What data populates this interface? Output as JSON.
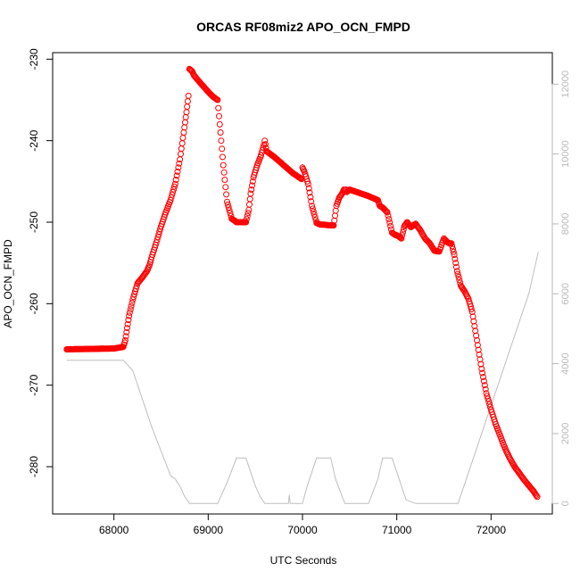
{
  "chart_data": {
    "type": "scatter",
    "title": "ORCAS RF08miz2 APO_OCN_FMPD",
    "xlabel": "UTC Seconds",
    "ylabel": "APO_OCN_FMPD",
    "xlim": [
      67350,
      72650
    ],
    "ylim": [
      -285.8,
      -229.2
    ],
    "y2lim": [
      -300,
      12900
    ],
    "x_ticks": [
      68000,
      69000,
      70000,
      71000,
      72000
    ],
    "y_ticks": [
      -230,
      -240,
      -250,
      -260,
      -270,
      -280
    ],
    "y2_ticks": [
      0,
      2000,
      4000,
      6000,
      8000,
      10000,
      12000
    ],
    "colors": {
      "points": "#ff0000",
      "altitude_line": "#bebebe",
      "axes": "#000000",
      "right_axis": "#b9b9b9"
    },
    "series": [
      {
        "marker": "open-circle",
        "x": [
          67500,
          68000,
          68100,
          68120,
          68140,
          68160,
          68200,
          68250,
          68300,
          68350,
          68380,
          68400,
          68450,
          68500,
          68550,
          68600,
          68650,
          68700,
          68740,
          68770,
          68790,
          68800,
          68830,
          68850,
          68900,
          69000,
          69050,
          69100,
          69130,
          69160,
          69200,
          69250,
          69280,
          69300,
          69350,
          69400,
          69430,
          69450,
          69480,
          69520,
          69560,
          69590,
          69600,
          69620,
          69700,
          69800,
          69900,
          69950,
          69990,
          70000,
          70020,
          70060,
          70100,
          70150,
          70190,
          70220,
          70300,
          70330,
          70360,
          70390,
          70420,
          70440,
          70460,
          70470,
          70500,
          70550,
          70600,
          70700,
          70800,
          70820,
          70850,
          70900,
          70950,
          70990,
          71000,
          71050,
          71080,
          71110,
          71150,
          71200,
          71250,
          71300,
          71350,
          71400,
          71450,
          71500,
          71540,
          71560,
          71580,
          71610,
          71640,
          71680,
          71720,
          71760,
          71800,
          71850,
          71900,
          71950,
          72000,
          72050,
          72100,
          72150,
          72200,
          72250,
          72300,
          72350,
          72400,
          72450,
          72490
        ],
        "y": [
          -265.6,
          -265.5,
          -265.3,
          -264.5,
          -263.0,
          -261.5,
          -259.5,
          -257.5,
          -256.8,
          -256.0,
          -255.2,
          -254.3,
          -252.5,
          -250.5,
          -248.8,
          -247.3,
          -245.3,
          -242.3,
          -239.0,
          -236.5,
          -234.5,
          -231.2,
          -231.5,
          -232.0,
          -232.7,
          -234.0,
          -234.6,
          -235.0,
          -239.0,
          -243.0,
          -247.5,
          -249.6,
          -249.8,
          -250.0,
          -250.0,
          -250.0,
          -248.5,
          -246.5,
          -244.5,
          -243.0,
          -241.8,
          -240.5,
          -240.0,
          -241.3,
          -242.0,
          -243.0,
          -244.0,
          -244.4,
          -244.7,
          -243.3,
          -243.8,
          -245.3,
          -248.0,
          -250.1,
          -250.3,
          -250.3,
          -250.4,
          -250.4,
          -248.0,
          -247.0,
          -246.5,
          -246.0,
          -246.0,
          -246.3,
          -246.0,
          -246.2,
          -246.4,
          -246.8,
          -247.3,
          -248.0,
          -248.2,
          -248.8,
          -251.3,
          -251.6,
          -251.6,
          -252.0,
          -250.5,
          -250.0,
          -250.6,
          -250.2,
          -251.0,
          -252.0,
          -252.6,
          -253.5,
          -253.6,
          -252.0,
          -252.5,
          -252.6,
          -252.6,
          -254.0,
          -256.0,
          -257.8,
          -258.5,
          -259.4,
          -261.0,
          -264.5,
          -268.0,
          -271.0,
          -273.0,
          -274.8,
          -276.3,
          -277.8,
          -279.0,
          -280.0,
          -280.8,
          -281.6,
          -282.3,
          -283.0,
          -283.7
        ]
      },
      {
        "axis": "right",
        "style": "line",
        "x": [
          67500,
          68100,
          68200,
          68300,
          68400,
          68500,
          68600,
          68650,
          68700,
          68750,
          68800,
          68900,
          69000,
          69100,
          69200,
          69300,
          69350,
          69400,
          69450,
          69500,
          69550,
          69600,
          69700,
          69850,
          69860,
          69870,
          69880,
          69900,
          70000,
          70050,
          70150,
          70300,
          70350,
          70450,
          70550,
          70600,
          70700,
          70800,
          70850,
          70950,
          71050,
          71100,
          71200,
          71250,
          71300,
          71500,
          71650,
          71800,
          71950,
          72100,
          72250,
          72400,
          72500
        ],
        "y": [
          4100,
          4100,
          3800,
          3000,
          2200,
          1500,
          800,
          700,
          500,
          200,
          0,
          0,
          0,
          0,
          600,
          1300,
          1300,
          1300,
          900,
          500,
          200,
          0,
          0,
          0,
          250,
          0,
          0,
          0,
          0,
          500,
          1300,
          1300,
          700,
          0,
          0,
          0,
          0,
          700,
          1300,
          1300,
          500,
          100,
          0,
          0,
          0,
          0,
          0,
          1200,
          2400,
          3600,
          4800,
          6000,
          7200
        ]
      }
    ]
  }
}
